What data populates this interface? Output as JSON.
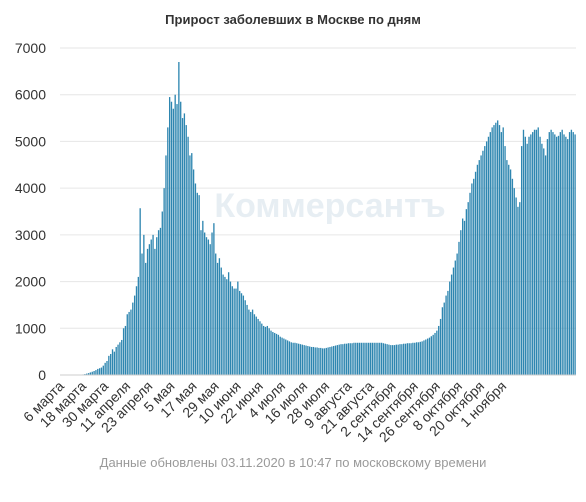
{
  "title": "Прирост заболевших в Москве по дням",
  "footnote": "Данные обновлены 03.11.2020 в 10:47 по московскому времени",
  "watermark": "Коммерсантъ",
  "colors": {
    "bar": "#2e86b0",
    "grid": "#e6e6e6",
    "axis_text": "#333333",
    "footnote": "#9a9a9a"
  },
  "chart_data": {
    "type": "bar",
    "title": "Прирост заболевших в Москве по дням",
    "xlabel": "",
    "ylabel": "",
    "ylim": [
      0,
      7000
    ],
    "yticks": [
      0,
      1000,
      2000,
      3000,
      4000,
      5000,
      6000,
      7000
    ],
    "grid": true,
    "start_date": "2020-03-06",
    "x_tick_labels": [
      "6 марта",
      "18 марта",
      "30 марта",
      "11 апреля",
      "23 апреля",
      "5 мая",
      "17 мая",
      "29 мая",
      "10 июня",
      "22 июня",
      "4 июля",
      "16 июля",
      "28 июля",
      "9 августа",
      "21 августа",
      "2 сентября",
      "14 сентября",
      "26 сентября",
      "8 октября",
      "20 октября",
      "1 ноября"
    ],
    "values": [
      1,
      1,
      1,
      1,
      2,
      2,
      2,
      3,
      4,
      5,
      6,
      10,
      12,
      20,
      30,
      40,
      55,
      70,
      85,
      105,
      130,
      145,
      160,
      200,
      260,
      300,
      410,
      450,
      550,
      500,
      600,
      650,
      700,
      750,
      1000,
      1050,
      1300,
      1350,
      1400,
      1550,
      1700,
      1900,
      2100,
      3570,
      2600,
      3000,
      2400,
      2700,
      2800,
      2900,
      3000,
      2700,
      2950,
      3100,
      3150,
      3500,
      4000,
      4700,
      5300,
      5950,
      5850,
      5700,
      6000,
      5800,
      6700,
      5850,
      5500,
      5600,
      5350,
      5100,
      4700,
      4750,
      4400,
      4100,
      3900,
      3850,
      3100,
      3300,
      3050,
      2950,
      2900,
      2800,
      3050,
      3250,
      2600,
      2400,
      2500,
      2300,
      2150,
      2100,
      2050,
      2200,
      2000,
      1900,
      1850,
      1850,
      2000,
      1800,
      1750,
      1700,
      1600,
      1500,
      1400,
      1350,
      1400,
      1300,
      1250,
      1200,
      1150,
      1100,
      1050,
      1030,
      1050,
      1000,
      950,
      920,
      900,
      880,
      860,
      820,
      800,
      780,
      760,
      740,
      720,
      700,
      690,
      690,
      680,
      670,
      660,
      650,
      640,
      630,
      620,
      610,
      600,
      600,
      590,
      590,
      580,
      580,
      570,
      570,
      580,
      590,
      600,
      610,
      620,
      630,
      640,
      650,
      660,
      660,
      670,
      670,
      680,
      680,
      680,
      690,
      690,
      690,
      690,
      690,
      690,
      690,
      690,
      690,
      690,
      690,
      690,
      690,
      690,
      690,
      690,
      680,
      670,
      660,
      650,
      640,
      640,
      640,
      650,
      650,
      660,
      660,
      670,
      670,
      680,
      680,
      680,
      690,
      690,
      700,
      700,
      710,
      720,
      740,
      760,
      780,
      800,
      830,
      860,
      900,
      950,
      1050,
      1200,
      1450,
      1550,
      1700,
      1800,
      2000,
      2150,
      2300,
      2450,
      2600,
      2850,
      3100,
      3350,
      3300,
      3550,
      3700,
      3900,
      4100,
      4200,
      4350,
      4500,
      4600,
      4700,
      4800,
      4900,
      5000,
      5100,
      5200,
      5300,
      5350,
      5400,
      5450,
      5350,
      5200,
      5300,
      4900,
      4600,
      4500,
      4400,
      4200,
      4000,
      3800,
      3600,
      3700,
      4900,
      5250,
      5100,
      4950,
      5100,
      5150,
      5200,
      5250,
      5250,
      5300,
      5100,
      4950,
      4850,
      4700,
      5050,
      5200,
      5250,
      5200,
      5150,
      5100,
      5120,
      5200,
      5250,
      5150,
      5100,
      5050,
      5200,
      5250,
      5200,
      5150
    ]
  }
}
